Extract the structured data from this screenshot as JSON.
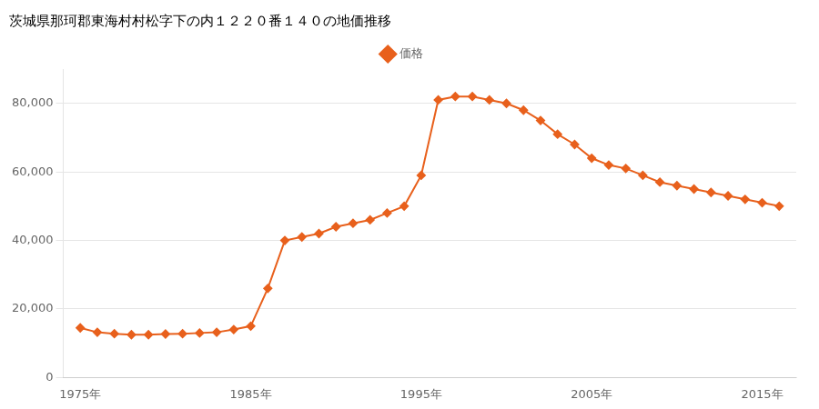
{
  "chart_data": {
    "type": "line",
    "title": "茨城県那珂郡東海村村松字下の内１２２０番１４０の地価推移",
    "x": [
      1975,
      1976,
      1977,
      1978,
      1979,
      1980,
      1981,
      1982,
      1983,
      1984,
      1985,
      1986,
      1987,
      1988,
      1989,
      1990,
      1991,
      1992,
      1993,
      1994,
      1995,
      1996,
      1997,
      1998,
      1999,
      2000,
      2001,
      2002,
      2003,
      2004,
      2005,
      2006,
      2007,
      2008,
      2009,
      2010,
      2011,
      2012,
      2013,
      2014,
      2015,
      2016
    ],
    "series": [
      {
        "name": "価格",
        "color": "#E8601C",
        "marker": "diamond",
        "values": [
          14500,
          13200,
          12800,
          12500,
          12500,
          12700,
          12800,
          13000,
          13200,
          14000,
          15000,
          26000,
          40000,
          41000,
          42000,
          44000,
          45000,
          46000,
          48000,
          50000,
          59000,
          81000,
          82000,
          82000,
          81000,
          80000,
          78000,
          75000,
          71000,
          68000,
          64000,
          62000,
          61000,
          59000,
          57000,
          56000,
          55000,
          54000,
          53000,
          52000,
          51000,
          50000
        ]
      }
    ],
    "xlim": [
      1974,
      2017
    ],
    "xticks": [
      {
        "value": 1975,
        "label": "1975年"
      },
      {
        "value": 1985,
        "label": "1985年"
      },
      {
        "value": 1995,
        "label": "1995年"
      },
      {
        "value": 2005,
        "label": "2005年"
      },
      {
        "value": 2015,
        "label": "2015年"
      }
    ],
    "ylim": [
      0,
      90000
    ],
    "yticks": [
      0,
      {
        "value": 20000,
        "label": "20,000"
      },
      {
        "value": 40000,
        "label": "40,000"
      },
      {
        "value": 60000,
        "label": "60,000"
      },
      {
        "value": 80000,
        "label": "80,000"
      }
    ],
    "grid": "y",
    "legend": "top"
  }
}
